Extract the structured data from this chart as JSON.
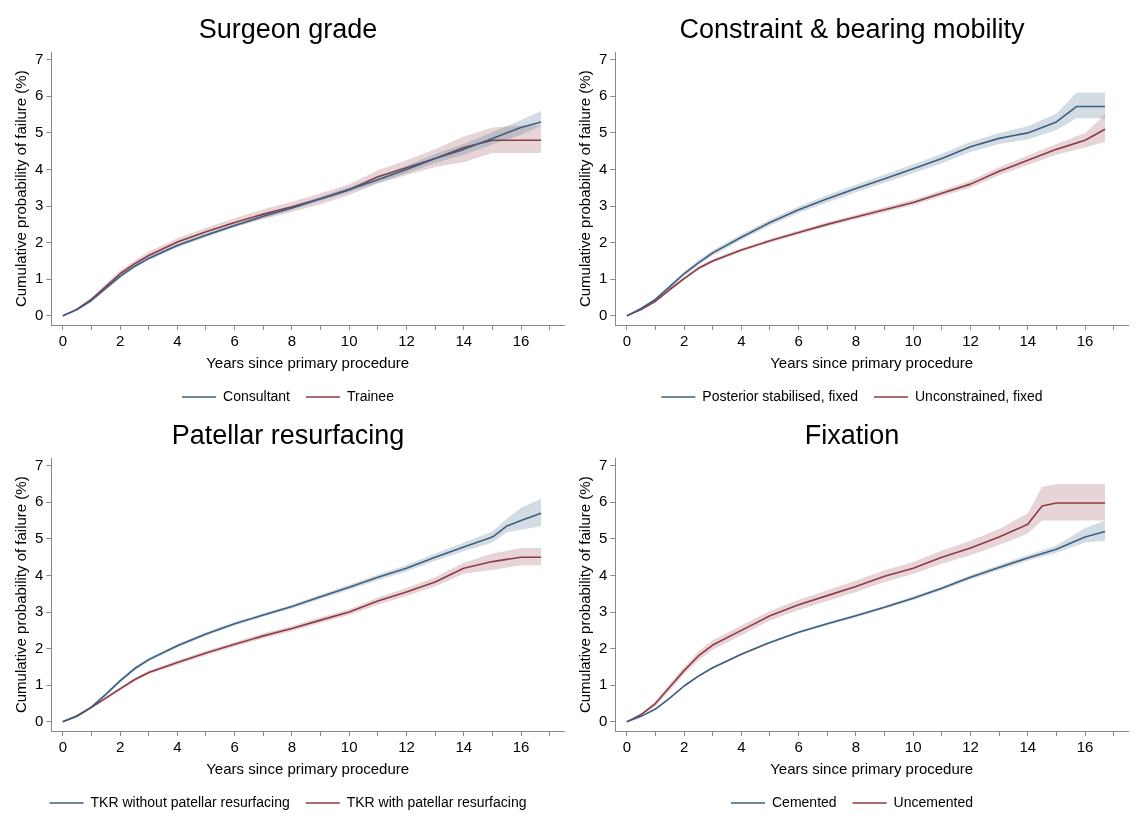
{
  "chart_data": [
    {
      "type": "line",
      "title": "Surgeon grade",
      "xlabel": "Years since primary procedure",
      "ylabel": "Cumulative probability of failure (%)",
      "xlim": [
        -0.4,
        17.5
      ],
      "ylim": [
        -0.25,
        7.2
      ],
      "xticks": [
        0,
        {
          "value": 1,
          "label": null
        },
        2,
        {
          "value": 3,
          "label": null
        },
        4,
        {
          "value": 5,
          "label": null
        },
        6,
        {
          "value": 7,
          "label": null
        },
        8,
        {
          "value": 9,
          "label": null
        },
        10,
        {
          "value": 11,
          "label": null
        },
        12,
        {
          "value": 13,
          "label": null
        },
        14,
        {
          "value": 15,
          "label": null
        },
        16,
        {
          "value": 17,
          "label": null
        }
      ],
      "yticks": [
        0,
        1,
        2,
        3,
        4,
        5,
        6,
        7
      ],
      "legend": "bottom",
      "marker": "none",
      "series": [
        {
          "name": "Consultant",
          "color": "#3d5f80",
          "x": [
            0,
            0.5,
            1,
            1.5,
            2,
            2.5,
            3,
            4,
            5,
            6,
            7,
            8,
            9,
            10,
            11,
            12,
            13,
            14,
            15,
            16,
            16.7
          ],
          "values": [
            0,
            0.17,
            0.42,
            0.75,
            1.08,
            1.35,
            1.57,
            1.92,
            2.2,
            2.47,
            2.72,
            2.95,
            3.2,
            3.45,
            3.72,
            4.0,
            4.3,
            4.55,
            4.85,
            5.15,
            5.3
          ],
          "lower": [
            0,
            0.15,
            0.39,
            0.71,
            1.03,
            1.3,
            1.52,
            1.87,
            2.15,
            2.42,
            2.67,
            2.9,
            3.14,
            3.38,
            3.64,
            3.9,
            4.18,
            4.4,
            4.68,
            4.95,
            5.2
          ],
          "upper": [
            0,
            0.19,
            0.45,
            0.79,
            1.13,
            1.4,
            1.62,
            1.97,
            2.25,
            2.52,
            2.77,
            3.0,
            3.26,
            3.52,
            3.8,
            4.1,
            4.42,
            4.7,
            5.02,
            5.35,
            5.6
          ]
        },
        {
          "name": "Trainee",
          "color": "#8e3b45",
          "x": [
            0,
            0.5,
            1,
            1.5,
            2,
            2.5,
            3,
            4,
            5,
            6,
            7,
            8,
            9,
            10,
            11,
            12,
            13,
            14,
            15,
            16,
            16.7
          ],
          "values": [
            0,
            0.18,
            0.45,
            0.8,
            1.15,
            1.42,
            1.65,
            2.02,
            2.3,
            2.55,
            2.78,
            2.98,
            3.2,
            3.45,
            3.8,
            4.05,
            4.3,
            4.6,
            4.8,
            4.8,
            4.8
          ],
          "lower": [
            0,
            0.15,
            0.4,
            0.73,
            1.07,
            1.33,
            1.55,
            1.92,
            2.19,
            2.43,
            2.65,
            2.84,
            3.05,
            3.3,
            3.62,
            3.85,
            4.07,
            4.2,
            4.45,
            4.45,
            4.45
          ],
          "upper": [
            0,
            0.21,
            0.5,
            0.87,
            1.23,
            1.51,
            1.75,
            2.12,
            2.41,
            2.67,
            2.91,
            3.12,
            3.35,
            3.6,
            3.98,
            4.25,
            4.55,
            4.9,
            5.15,
            5.2,
            5.2
          ]
        }
      ]
    },
    {
      "type": "line",
      "title": "Constraint & bearing mobility",
      "xlabel": "Years since primary procedure",
      "ylabel": "Cumulative probability of failure (%)",
      "xlim": [
        -0.4,
        17.5
      ],
      "ylim": [
        -0.25,
        7.2
      ],
      "xticks": [
        0,
        {
          "value": 1,
          "label": null
        },
        2,
        {
          "value": 3,
          "label": null
        },
        4,
        {
          "value": 5,
          "label": null
        },
        6,
        {
          "value": 7,
          "label": null
        },
        8,
        {
          "value": 9,
          "label": null
        },
        10,
        {
          "value": 11,
          "label": null
        },
        12,
        {
          "value": 13,
          "label": null
        },
        14,
        {
          "value": 15,
          "label": null
        },
        16,
        {
          "value": 17,
          "label": null
        }
      ],
      "yticks": [
        0,
        1,
        2,
        3,
        4,
        5,
        6,
        7
      ],
      "legend": "bottom",
      "marker": "none",
      "series": [
        {
          "name": "Posterior stabilised, fixed",
          "color": "#3d5f80",
          "x": [
            0,
            0.5,
            1,
            1.5,
            2,
            2.5,
            3,
            4,
            5,
            6,
            7,
            8,
            9,
            10,
            11,
            12,
            13,
            14,
            15,
            15.7,
            16.7
          ],
          "values": [
            0,
            0.2,
            0.45,
            0.8,
            1.15,
            1.45,
            1.72,
            2.15,
            2.55,
            2.9,
            3.2,
            3.48,
            3.75,
            4.02,
            4.3,
            4.62,
            4.85,
            5.0,
            5.3,
            5.72,
            5.72
          ],
          "lower": [
            0,
            0.17,
            0.41,
            0.75,
            1.09,
            1.38,
            1.65,
            2.07,
            2.47,
            2.81,
            3.1,
            3.38,
            3.64,
            3.9,
            4.17,
            4.48,
            4.7,
            4.82,
            5.08,
            5.4,
            5.4
          ],
          "upper": [
            0,
            0.23,
            0.49,
            0.85,
            1.21,
            1.52,
            1.79,
            2.23,
            2.63,
            2.99,
            3.3,
            3.58,
            3.86,
            4.14,
            4.43,
            4.76,
            5.0,
            5.18,
            5.52,
            6.1,
            6.1
          ]
        },
        {
          "name": "Unconstrained, fixed",
          "color": "#8e3b45",
          "x": [
            0,
            0.5,
            1,
            1.5,
            2,
            2.5,
            3,
            4,
            5,
            6,
            7,
            8,
            9,
            10,
            11,
            12,
            13,
            14,
            15,
            16,
            16.7
          ],
          "values": [
            0,
            0.17,
            0.4,
            0.72,
            1.02,
            1.3,
            1.5,
            1.8,
            2.05,
            2.28,
            2.5,
            2.7,
            2.9,
            3.1,
            3.35,
            3.6,
            3.95,
            4.25,
            4.55,
            4.8,
            5.1
          ],
          "lower": [
            0,
            0.15,
            0.37,
            0.68,
            0.98,
            1.25,
            1.45,
            1.75,
            2.0,
            2.23,
            2.44,
            2.64,
            2.83,
            3.03,
            3.27,
            3.5,
            3.84,
            4.12,
            4.4,
            4.6,
            4.75
          ],
          "upper": [
            0,
            0.19,
            0.43,
            0.76,
            1.06,
            1.35,
            1.55,
            1.85,
            2.1,
            2.33,
            2.56,
            2.76,
            2.97,
            3.17,
            3.43,
            3.7,
            4.06,
            4.38,
            4.7,
            5.0,
            5.5
          ]
        }
      ]
    },
    {
      "type": "line",
      "title": "Patellar resurfacing",
      "xlabel": "Years since primary procedure",
      "ylabel": "Cumulative probability of failure (%)",
      "xlim": [
        -0.4,
        17.5
      ],
      "ylim": [
        -0.25,
        7.2
      ],
      "xticks": [
        0,
        {
          "value": 1,
          "label": null
        },
        2,
        {
          "value": 3,
          "label": null
        },
        4,
        {
          "value": 5,
          "label": null
        },
        6,
        {
          "value": 7,
          "label": null
        },
        8,
        {
          "value": 9,
          "label": null
        },
        10,
        {
          "value": 11,
          "label": null
        },
        12,
        {
          "value": 13,
          "label": null
        },
        14,
        {
          "value": 15,
          "label": null
        },
        16,
        {
          "value": 17,
          "label": null
        }
      ],
      "yticks": [
        0,
        1,
        2,
        3,
        4,
        5,
        6,
        7
      ],
      "legend": "bottom",
      "marker": "none",
      "series": [
        {
          "name": "TKR without patellar resurfacing",
          "color": "#3d5f80",
          "x": [
            0,
            0.5,
            1,
            1.5,
            2,
            2.5,
            3,
            4,
            5,
            6,
            7,
            8,
            9,
            10,
            11,
            12,
            13,
            14,
            15,
            15.5,
            16,
            16.7
          ],
          "values": [
            0,
            0.15,
            0.4,
            0.75,
            1.12,
            1.45,
            1.7,
            2.08,
            2.4,
            2.68,
            2.92,
            3.15,
            3.42,
            3.68,
            3.95,
            4.2,
            4.5,
            4.78,
            5.05,
            5.35,
            5.5,
            5.7
          ],
          "lower": [
            0,
            0.13,
            0.37,
            0.71,
            1.07,
            1.4,
            1.65,
            2.03,
            2.35,
            2.63,
            2.87,
            3.1,
            3.36,
            3.61,
            3.87,
            4.11,
            4.4,
            4.66,
            4.9,
            5.18,
            5.25,
            5.35
          ],
          "upper": [
            0,
            0.17,
            0.43,
            0.79,
            1.17,
            1.5,
            1.75,
            2.13,
            2.45,
            2.73,
            2.97,
            3.2,
            3.48,
            3.75,
            4.03,
            4.29,
            4.6,
            4.9,
            5.2,
            5.55,
            5.85,
            6.1
          ]
        },
        {
          "name": "TKR with patellar resurfacing",
          "color": "#8e3b45",
          "x": [
            0,
            0.5,
            1,
            1.5,
            2,
            2.5,
            3,
            4,
            5,
            6,
            7,
            8,
            9,
            10,
            11,
            12,
            13,
            14,
            15,
            16,
            16.7
          ],
          "values": [
            0,
            0.17,
            0.4,
            0.65,
            0.9,
            1.15,
            1.35,
            1.62,
            1.88,
            2.12,
            2.35,
            2.55,
            2.78,
            3.0,
            3.3,
            3.55,
            3.82,
            4.2,
            4.38,
            4.5,
            4.5
          ],
          "lower": [
            0,
            0.15,
            0.37,
            0.61,
            0.86,
            1.1,
            1.3,
            1.56,
            1.82,
            2.06,
            2.28,
            2.48,
            2.7,
            2.92,
            3.2,
            3.44,
            3.7,
            4.05,
            4.15,
            4.28,
            4.28
          ],
          "upper": [
            0,
            0.19,
            0.43,
            0.69,
            0.94,
            1.2,
            1.4,
            1.68,
            1.94,
            2.18,
            2.42,
            2.62,
            2.86,
            3.08,
            3.4,
            3.66,
            3.95,
            4.35,
            4.6,
            4.75,
            4.75
          ]
        }
      ]
    },
    {
      "type": "line",
      "title": "Fixation",
      "xlabel": "Years since primary procedure",
      "ylabel": "Cumulative probability of failure (%)",
      "xlim": [
        -0.4,
        17.5
      ],
      "ylim": [
        -0.25,
        7.2
      ],
      "xticks": [
        0,
        {
          "value": 1,
          "label": null
        },
        2,
        {
          "value": 3,
          "label": null
        },
        4,
        {
          "value": 5,
          "label": null
        },
        6,
        {
          "value": 7,
          "label": null
        },
        8,
        {
          "value": 9,
          "label": null
        },
        10,
        {
          "value": 11,
          "label": null
        },
        12,
        {
          "value": 13,
          "label": null
        },
        14,
        {
          "value": 15,
          "label": null
        },
        16,
        {
          "value": 17,
          "label": null
        }
      ],
      "yticks": [
        0,
        1,
        2,
        3,
        4,
        5,
        6,
        7
      ],
      "legend": "bottom",
      "marker": "none",
      "series": [
        {
          "name": "Cemented",
          "color": "#3d5f80",
          "x": [
            0,
            0.5,
            1,
            1.5,
            2,
            2.5,
            3,
            4,
            5,
            6,
            7,
            8,
            9,
            10,
            11,
            12,
            13,
            14,
            15,
            16,
            16.7
          ],
          "values": [
            0,
            0.15,
            0.35,
            0.65,
            0.98,
            1.25,
            1.48,
            1.85,
            2.17,
            2.45,
            2.68,
            2.9,
            3.13,
            3.38,
            3.65,
            3.95,
            4.22,
            4.48,
            4.72,
            5.05,
            5.2
          ],
          "lower": [
            0,
            0.13,
            0.33,
            0.62,
            0.95,
            1.22,
            1.45,
            1.82,
            2.14,
            2.42,
            2.64,
            2.86,
            3.09,
            3.33,
            3.6,
            3.89,
            4.15,
            4.4,
            4.62,
            4.9,
            4.95
          ],
          "upper": [
            0,
            0.17,
            0.37,
            0.68,
            1.01,
            1.28,
            1.51,
            1.88,
            2.2,
            2.48,
            2.72,
            2.94,
            3.17,
            3.43,
            3.7,
            4.01,
            4.29,
            4.56,
            4.82,
            5.3,
            5.5
          ]
        },
        {
          "name": "Uncemented",
          "color": "#8e3b45",
          "x": [
            0,
            0.5,
            1,
            1.5,
            2,
            2.5,
            3,
            4,
            5,
            6,
            7,
            8,
            9,
            10,
            11,
            12,
            13,
            14,
            14.5,
            15,
            16,
            16.7
          ],
          "values": [
            0,
            0.2,
            0.5,
            0.95,
            1.4,
            1.8,
            2.1,
            2.5,
            2.9,
            3.2,
            3.45,
            3.7,
            3.98,
            4.2,
            4.5,
            4.75,
            5.05,
            5.4,
            5.9,
            5.98,
            5.98,
            5.98
          ],
          "lower": [
            0,
            0.17,
            0.43,
            0.86,
            1.3,
            1.68,
            1.97,
            2.37,
            2.77,
            3.06,
            3.3,
            3.55,
            3.82,
            4.04,
            4.32,
            4.55,
            4.83,
            5.15,
            5.5,
            5.5,
            5.5,
            5.5
          ],
          "upper": [
            0,
            0.23,
            0.57,
            1.04,
            1.5,
            1.92,
            2.23,
            2.63,
            3.03,
            3.34,
            3.6,
            3.86,
            4.14,
            4.37,
            4.68,
            4.95,
            5.27,
            5.7,
            6.42,
            6.5,
            6.5,
            6.5
          ]
        }
      ]
    }
  ]
}
